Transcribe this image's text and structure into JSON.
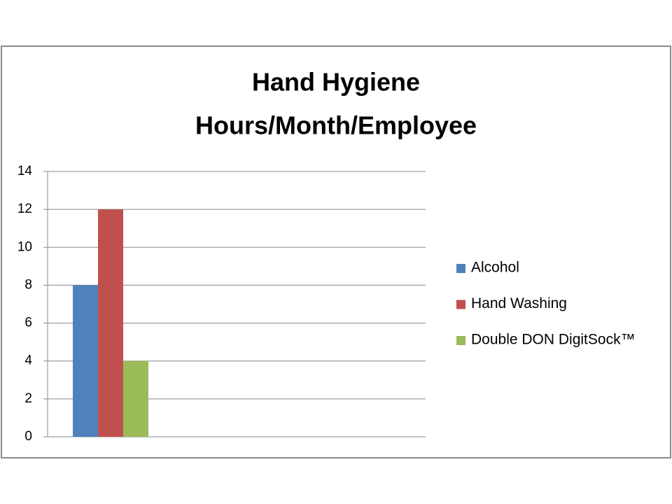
{
  "chart_data": {
    "type": "bar",
    "title": [
      "Hand Hygiene",
      "Hours/Month/Employee"
    ],
    "categories": [
      null,
      null,
      null
    ],
    "series": [
      {
        "name": "Alcohol",
        "color": "#4f81bd",
        "values": [
          8,
          null,
          null
        ]
      },
      {
        "name": "Hand Washing",
        "color": "#c0504d",
        "values": [
          12,
          null,
          null
        ]
      },
      {
        "name": "Double DON DigitSock™",
        "color": "#9bbb59",
        "values": [
          4,
          null,
          null
        ]
      }
    ],
    "ylim": [
      0,
      14
    ],
    "yticks": [
      0,
      2,
      4,
      6,
      8,
      10,
      12,
      14
    ],
    "grid": true,
    "legend": "right"
  }
}
